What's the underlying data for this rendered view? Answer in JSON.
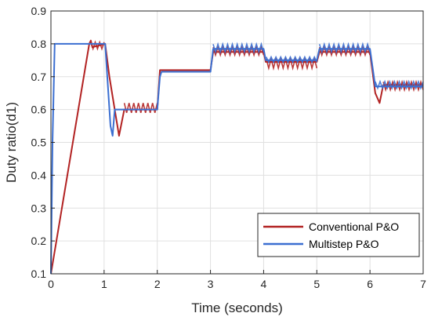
{
  "chart_data": {
    "type": "line",
    "title": "",
    "xlabel": "Time (seconds)",
    "ylabel": "Duty ratio(d1)",
    "xlim": [
      0,
      7
    ],
    "ylim": [
      0.1,
      0.9
    ],
    "xticks": [
      0,
      1,
      2,
      3,
      4,
      5,
      6,
      7
    ],
    "yticks": [
      0.1,
      0.2,
      0.3,
      0.4,
      0.5,
      0.6,
      0.7,
      0.8,
      0.9
    ],
    "xtick_labels": [
      "0",
      "1",
      "2",
      "3",
      "4",
      "5",
      "6",
      "7"
    ],
    "ytick_labels": [
      "0.1",
      "0.2",
      "0.3",
      "0.4",
      "0.5",
      "0.6",
      "0.7",
      "0.8",
      "0.9"
    ],
    "grid": true,
    "legend_position": "bottom-right",
    "series": [
      {
        "name": "Conventional P&O",
        "color": "#b22222",
        "points": [
          [
            0,
            0.1
          ],
          [
            0.72,
            0.8
          ],
          [
            0.75,
            0.81
          ],
          [
            0.78,
            0.79
          ],
          [
            1.02,
            0.8
          ],
          [
            1.1,
            0.7
          ],
          [
            1.2,
            0.6
          ],
          [
            1.28,
            0.52
          ],
          [
            1.38,
            0.6
          ],
          [
            2.0,
            0.6
          ],
          [
            2.05,
            0.72
          ],
          [
            3.0,
            0.72
          ],
          [
            3.05,
            0.775
          ],
          [
            4.0,
            0.775
          ],
          [
            4.04,
            0.745
          ],
          [
            5.0,
            0.745
          ],
          [
            5.05,
            0.775
          ],
          [
            6.0,
            0.775
          ],
          [
            6.1,
            0.65
          ],
          [
            6.18,
            0.62
          ],
          [
            6.25,
            0.675
          ],
          [
            7.0,
            0.675
          ]
        ],
        "oscillation_segments": [
          {
            "x_range": [
              0.75,
              1.0
            ],
            "center": 0.795,
            "amplitude": 0.01
          },
          {
            "x_range": [
              1.38,
              2.0
            ],
            "center": 0.605,
            "amplitude": 0.015
          },
          {
            "x_range": [
              3.05,
              4.0
            ],
            "center": 0.778,
            "amplitude": 0.012
          },
          {
            "x_range": [
              4.05,
              5.0
            ],
            "center": 0.74,
            "amplitude": 0.014
          },
          {
            "x_range": [
              5.05,
              6.0
            ],
            "center": 0.778,
            "amplitude": 0.012
          },
          {
            "x_range": [
              6.25,
              7.0
            ],
            "center": 0.672,
            "amplitude": 0.012
          }
        ]
      },
      {
        "name": "Multistep P&O",
        "color": "#3b6fd1",
        "points": [
          [
            0,
            0.1
          ],
          [
            0.03,
            0.5
          ],
          [
            0.07,
            0.8
          ],
          [
            1.02,
            0.8
          ],
          [
            1.12,
            0.55
          ],
          [
            1.16,
            0.52
          ],
          [
            1.2,
            0.6
          ],
          [
            2.0,
            0.6
          ],
          [
            2.05,
            0.7
          ],
          [
            2.08,
            0.715
          ],
          [
            3.0,
            0.715
          ],
          [
            3.05,
            0.785
          ],
          [
            4.0,
            0.785
          ],
          [
            4.04,
            0.75
          ],
          [
            5.0,
            0.75
          ],
          [
            5.05,
            0.785
          ],
          [
            6.0,
            0.785
          ],
          [
            6.1,
            0.67
          ],
          [
            7.0,
            0.67
          ]
        ],
        "oscillation_segments": [
          {
            "x_range": [
              3.05,
              4.0
            ],
            "center": 0.787,
            "amplitude": 0.012
          },
          {
            "x_range": [
              4.05,
              5.0
            ],
            "center": 0.752,
            "amplitude": 0.008
          },
          {
            "x_range": [
              5.05,
              6.0
            ],
            "center": 0.787,
            "amplitude": 0.012
          },
          {
            "x_range": [
              6.1,
              7.0
            ],
            "center": 0.675,
            "amplitude": 0.01
          }
        ]
      }
    ]
  }
}
